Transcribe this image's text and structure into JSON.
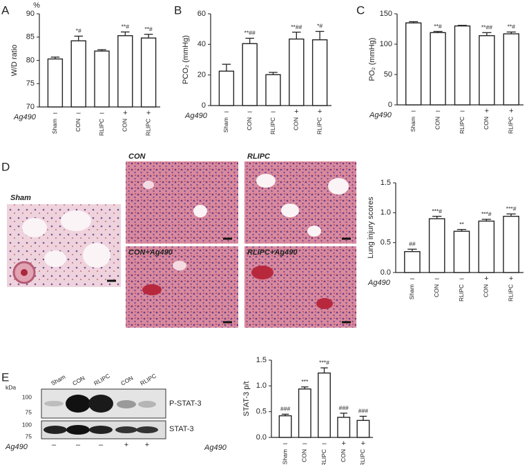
{
  "panels": [
    "A",
    "B",
    "C",
    "D",
    "E"
  ],
  "micrographs": [
    "Sham",
    "CON",
    "RLIPC",
    "CON+Ag490",
    "RLIPC+Ag490"
  ],
  "blot": {
    "unit": "kDa",
    "lanes": [
      "Sham",
      "CON",
      "RLIPC",
      "CON",
      "RLIPC"
    ],
    "markers": [
      100,
      75,
      100,
      75
    ],
    "bands": [
      "P-STAT-3",
      "STAT-3"
    ],
    "treatment_label": "Ag490",
    "treatment": [
      "–",
      "–",
      "–",
      "+",
      "+"
    ]
  },
  "chart_data": [
    {
      "type": "bar",
      "y_label": "W/D ratio",
      "y_unit": "%",
      "categories": [
        "Sham",
        "CON",
        "RLIPC",
        "CON",
        "RLIPC"
      ],
      "treatment_label": "Ag490",
      "treatment": [
        "–",
        "–",
        "–",
        "+",
        "+"
      ],
      "values": [
        80.3,
        84.2,
        82.0,
        85.3,
        84.8
      ],
      "errors": [
        0.4,
        1.0,
        0.3,
        0.8,
        0.8
      ],
      "annotations": [
        null,
        "*#",
        null,
        "**#",
        "**#"
      ],
      "ylim": [
        70,
        90
      ],
      "yticks": [
        70,
        75,
        80,
        85,
        90
      ],
      "color": "#ffffff"
    },
    {
      "type": "bar",
      "y_label": "PCO₂ (mmHg)",
      "categories": [
        "Sham",
        "CON",
        "RLIPC",
        "CON",
        "RLIPC"
      ],
      "treatment_label": "Ag490",
      "treatment": [
        "–",
        "–",
        "–",
        "+",
        "+"
      ],
      "values": [
        22.5,
        40.5,
        20.2,
        43.5,
        43.0
      ],
      "errors": [
        4.5,
        3.5,
        1.5,
        4.5,
        5.5
      ],
      "annotations": [
        null,
        "**##",
        null,
        "**##",
        "*#"
      ],
      "ylim": [
        0,
        60
      ],
      "yticks": [
        0,
        20,
        40,
        60
      ],
      "color": "#ffffff"
    },
    {
      "type": "bar",
      "y_label": "PO₂ (mmHg)",
      "categories": [
        "Sham",
        "CON",
        "RLIPC",
        "CON",
        "RLIPC"
      ],
      "treatment_label": "Ag490",
      "treatment": [
        "–",
        "–",
        "–",
        "+",
        "+"
      ],
      "values": [
        135,
        119,
        130,
        114,
        117
      ],
      "errors": [
        2,
        2,
        1,
        5,
        3
      ],
      "annotations": [
        null,
        "**#",
        null,
        "**##",
        "**#"
      ],
      "ylim": [
        0,
        150
      ],
      "yticks": [
        0,
        50,
        100,
        150
      ],
      "color": "#ffffff"
    },
    {
      "type": "bar",
      "y_label": "Lung injury scores",
      "categories": [
        "Sham",
        "CON",
        "RLIPC",
        "CON",
        "RLIPC"
      ],
      "treatment_label": "Ag490",
      "treatment": [
        "–",
        "–",
        "–",
        "+",
        "+"
      ],
      "values": [
        0.35,
        0.9,
        0.69,
        0.86,
        0.94
      ],
      "errors": [
        0.04,
        0.04,
        0.03,
        0.03,
        0.04
      ],
      "annotations": [
        "##",
        "***#",
        "**",
        "***#",
        "***#"
      ],
      "ylim": [
        0,
        1.5
      ],
      "yticks": [
        {
          "value": 0,
          "label": "0.0"
        },
        0.5,
        {
          "value": 1,
          "label": "1.0"
        },
        1.5
      ],
      "color": "#ffffff"
    },
    {
      "type": "bar",
      "y_label": "STAT-3 p/t",
      "categories": [
        "Sham",
        "CON",
        "RLIPC",
        "CON",
        "RLIPC"
      ],
      "treatment_label": "Ag490",
      "treatment": [
        "–",
        "–",
        "–",
        "+",
        "+"
      ],
      "values": [
        0.42,
        0.94,
        1.25,
        0.39,
        0.33
      ],
      "errors": [
        0.03,
        0.04,
        0.1,
        0.08,
        0.08
      ],
      "annotations": [
        "###",
        "***",
        "***#",
        "###",
        "###"
      ],
      "ylim": [
        0,
        1.5
      ],
      "yticks": [
        {
          "value": 0,
          "label": "0.0"
        },
        0.5,
        {
          "value": 1,
          "label": "1.0"
        },
        1.5
      ],
      "color": "#ffffff"
    }
  ]
}
